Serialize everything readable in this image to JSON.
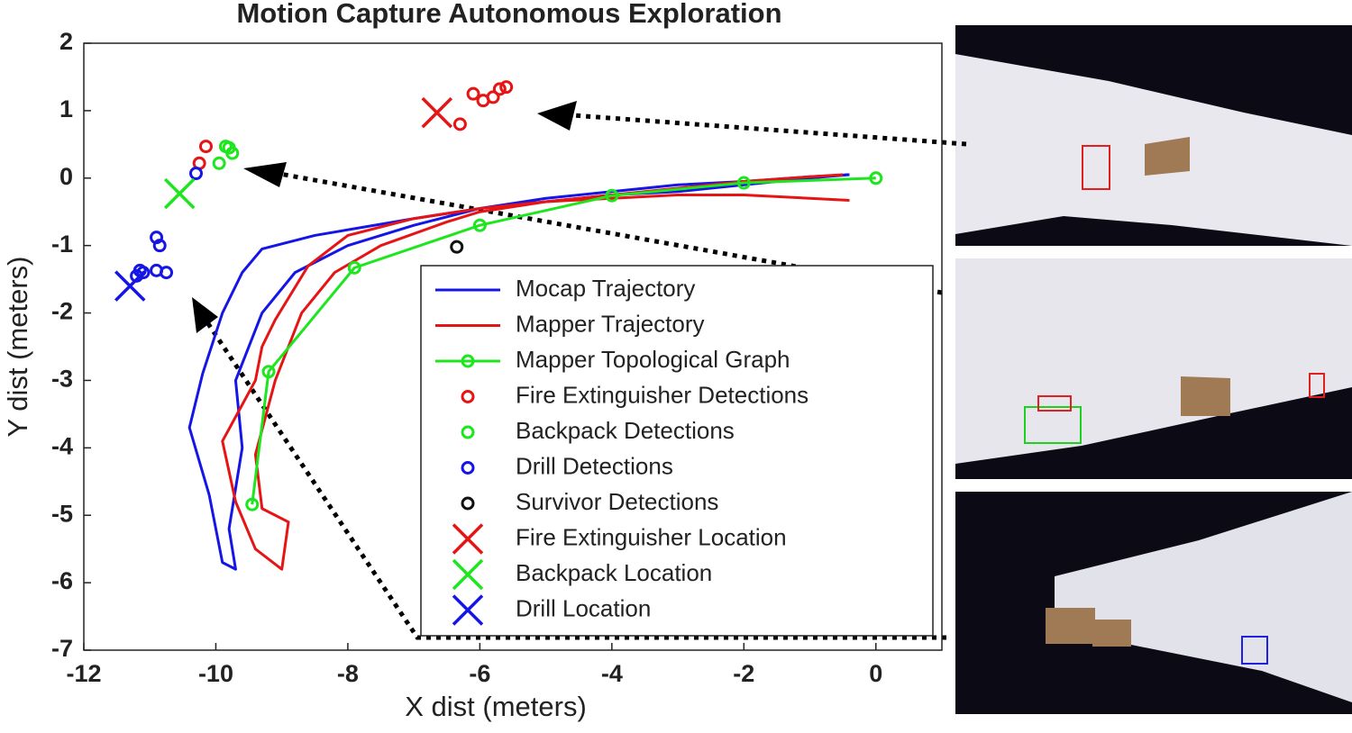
{
  "chart_data": {
    "type": "line",
    "title": "Motion Capture Autonomous Exploration",
    "xlabel": "X dist (meters)",
    "ylabel": "Y dist (meters)",
    "xlim": [
      -12,
      1
    ],
    "ylim": [
      -7,
      2
    ],
    "xticks": [
      -12,
      -10,
      -8,
      -6,
      -4,
      -2,
      0
    ],
    "yticks": [
      2,
      1,
      0,
      -1,
      -2,
      -3,
      -4,
      -5,
      -6,
      -7
    ],
    "series": [
      {
        "name": "Mocap Trajectory",
        "color": "#1515e6",
        "mode": "line",
        "x": [
          -0.4,
          -1,
          -2,
          -3,
          -4,
          -5,
          -6,
          -7,
          -8.5,
          -9.3,
          -9.6,
          -9.9,
          -10.2,
          -10.4,
          -10.1,
          -9.9,
          -9.7,
          -9.8,
          -9.6,
          -9.7,
          -9.3,
          -8.8,
          -8,
          -7,
          -6,
          -5,
          -4,
          -3,
          -2,
          -1,
          -0.4
        ],
        "values": [
          0.05,
          0.02,
          -0.05,
          -0.1,
          -0.2,
          -0.3,
          -0.45,
          -0.6,
          -0.85,
          -1.05,
          -1.4,
          -2.0,
          -2.9,
          -3.7,
          -4.7,
          -5.7,
          -5.8,
          -5.2,
          -4.0,
          -3.0,
          -2.0,
          -1.4,
          -1.0,
          -0.7,
          -0.45,
          -0.35,
          -0.25,
          -0.2,
          -0.1,
          0.0,
          0.05
        ]
      },
      {
        "name": "Mapper Trajectory",
        "color": "#e61515",
        "mode": "line",
        "x": [
          -0.4,
          -1,
          -2,
          -3,
          -4,
          -5,
          -6,
          -7,
          -8,
          -8.6,
          -9.1,
          -9.3,
          -9.4,
          -9.9,
          -9.7,
          -9.4,
          -9.0,
          -8.9,
          -9.3,
          -9.4,
          -9.1,
          -8.7,
          -8.2,
          -7.5,
          -6.5,
          -6,
          -5,
          -4,
          -3,
          -2,
          -1,
          -0.5
        ],
        "values": [
          -0.33,
          -0.3,
          -0.25,
          -0.25,
          -0.3,
          -0.35,
          -0.45,
          -0.6,
          -0.85,
          -1.3,
          -2.1,
          -2.5,
          -3.0,
          -3.9,
          -4.8,
          -5.5,
          -5.8,
          -5.1,
          -4.9,
          -4.1,
          -3.0,
          -2.0,
          -1.4,
          -1.0,
          -0.65,
          -0.5,
          -0.35,
          -0.25,
          -0.15,
          -0.05,
          0.02,
          0.05
        ]
      },
      {
        "name": "Mapper Topological Graph",
        "color": "#1ee61e",
        "mode": "line+markers",
        "marker": "o",
        "x": [
          0,
          -2,
          -4,
          -6,
          -7.9,
          -9.2,
          -9.45
        ],
        "values": [
          0,
          -0.07,
          -0.26,
          -0.7,
          -1.33,
          -2.87,
          -4.84
        ]
      },
      {
        "name": "Fire Extinguisher Detections",
        "color": "#e61515",
        "mode": "markers",
        "marker": "o",
        "x": [
          -6.1,
          -5.8,
          -5.7,
          -5.95,
          -5.6,
          -6.3,
          -10.15,
          -10.25
        ],
        "values": [
          1.25,
          1.2,
          1.32,
          1.15,
          1.35,
          0.8,
          0.47,
          0.22
        ]
      },
      {
        "name": "Backpack Detections",
        "color": "#1ee61e",
        "mode": "markers",
        "marker": "o",
        "x": [
          -9.85,
          -9.75,
          -9.95,
          -9.8
        ],
        "values": [
          0.47,
          0.37,
          0.22,
          0.45
        ]
      },
      {
        "name": "Drill Detections",
        "color": "#1515e6",
        "mode": "markers",
        "marker": "o",
        "x": [
          -10.3,
          -10.9,
          -10.85,
          -10.75,
          -11.1,
          -11.2,
          -10.9,
          -11.15
        ],
        "values": [
          0.07,
          -0.88,
          -1.0,
          -1.4,
          -1.4,
          -1.45,
          -1.37,
          -1.37
        ]
      },
      {
        "name": "Survivor Detections",
        "color": "#111111",
        "mode": "markers",
        "marker": "o",
        "x": [
          -6.35
        ],
        "values": [
          -1.02
        ]
      },
      {
        "name": "Fire Extinguisher Location",
        "color": "#e61515",
        "mode": "markers",
        "marker": "x",
        "x": [
          -6.65
        ],
        "values": [
          0.97
        ]
      },
      {
        "name": "Backpack Location",
        "color": "#1ee61e",
        "mode": "markers",
        "marker": "x",
        "x": [
          -10.55
        ],
        "values": [
          -0.23
        ]
      },
      {
        "name": "Drill Location",
        "color": "#1515e6",
        "mode": "markers",
        "marker": "x",
        "x": [
          -11.3
        ],
        "values": [
          -1.6
        ]
      }
    ]
  }
}
